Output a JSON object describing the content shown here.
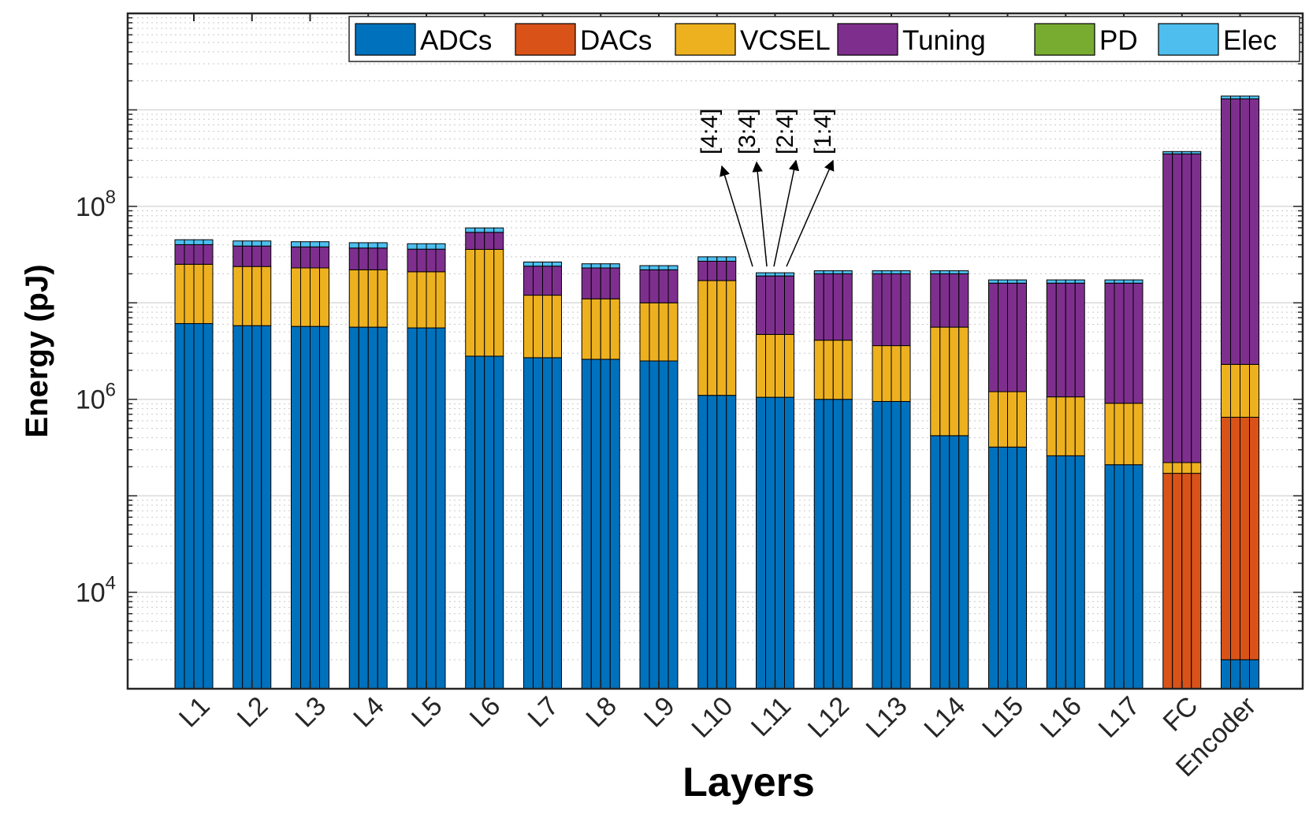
{
  "chart_data": {
    "type": "bar",
    "stacked": true,
    "yscale": "log",
    "ylim": [
      1000,
      10000000000
    ],
    "ylabel": "Energy (pJ)",
    "xlabel": "Layers",
    "yticks": [
      {
        "value": 10000,
        "base": "10",
        "exp": "4"
      },
      {
        "value": 1000000,
        "base": "10",
        "exp": "6"
      },
      {
        "value": 100000000,
        "base": "10",
        "exp": "8"
      }
    ],
    "grid": true,
    "legend_position": "top",
    "categories": [
      "L1",
      "L2",
      "L3",
      "L4",
      "L5",
      "L6",
      "L7",
      "L8",
      "L9",
      "L10",
      "L11",
      "L12",
      "L13",
      "L14",
      "L15",
      "L16",
      "L17",
      "FC",
      "Encoder"
    ],
    "sub_bars_per_category": 4,
    "series": [
      {
        "name": "ADCs",
        "color": "#0072BD",
        "values": [
          6100000,
          5800000,
          5700000,
          5600000,
          5500000,
          2800000,
          2700000,
          2600000,
          2500000,
          1100000,
          1050000,
          1000000,
          950000,
          420000,
          320000,
          260000,
          210000,
          1000,
          2000
        ]
      },
      {
        "name": "DACs",
        "color": "#D95319",
        "values": [
          0,
          0,
          0,
          0,
          0,
          0,
          0,
          0,
          0,
          0,
          0,
          0,
          0,
          0,
          0,
          0,
          0,
          170000,
          650000
        ]
      },
      {
        "name": "VCSEL",
        "color": "#EDB120",
        "values": [
          19000000,
          18000000,
          17300000,
          16400000,
          15500000,
          33000000,
          9300000,
          8400000,
          7500000,
          15900000,
          3650000,
          3100000,
          2650000,
          5180000,
          880000,
          800000,
          700000,
          50000,
          1650000
        ]
      },
      {
        "name": "Tuning",
        "color": "#7E2F8E",
        "values": [
          15000000,
          15000000,
          15000000,
          15000000,
          15000000,
          18000000,
          12000000,
          12000000,
          12000000,
          10000000,
          14300000,
          15900000,
          16400000,
          14400000,
          14800000,
          14940000,
          15090000,
          349780000,
          1297700000
        ]
      },
      {
        "name": "PD",
        "color": "#77AC30",
        "values": [
          100,
          100,
          100,
          100,
          100,
          100,
          100,
          100,
          100,
          100,
          100,
          100,
          100,
          100,
          100,
          100,
          100,
          100,
          100
        ]
      },
      {
        "name": "Elec",
        "color": "#4DBEEE",
        "values": [
          5000000,
          5000000,
          5000000,
          5000000,
          5000000,
          6000000,
          2500000,
          2400000,
          2300000,
          3000000,
          1500000,
          1500000,
          1500000,
          1500000,
          1300000,
          1300000,
          1300000,
          20000000,
          90000000
        ]
      }
    ],
    "annotations": {
      "target": "L11",
      "labels": [
        "[4:4]",
        "[3:4]",
        "[2:4]",
        "[1:4]"
      ]
    }
  }
}
